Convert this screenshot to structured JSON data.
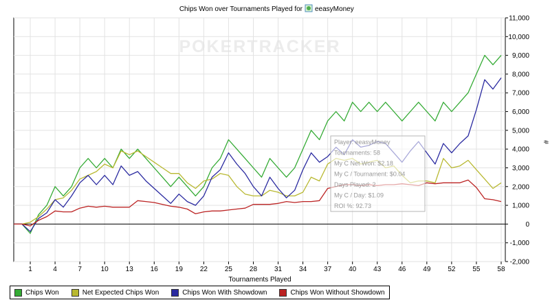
{
  "chart_data": {
    "type": "line",
    "title_prefix": "Chips Won over Tournaments Played for",
    "player_name": "eeasyMoney",
    "xlabel": "Tournaments Played",
    "ylabel": "#",
    "watermark": "POKERTRACKER",
    "x_ticks": [
      1,
      4,
      7,
      10,
      13,
      16,
      19,
      22,
      25,
      28,
      31,
      34,
      37,
      40,
      43,
      46,
      49,
      52,
      55,
      58
    ],
    "xlim": [
      -1,
      58.5
    ],
    "ylim": [
      -2000,
      11000
    ],
    "y_ticks": [
      -2000,
      -1000,
      0,
      1000,
      2000,
      3000,
      4000,
      5000,
      6000,
      7000,
      8000,
      9000,
      10000,
      11000
    ],
    "y_tick_labels": [
      "-2,000",
      "-1,000",
      "0",
      "1,000",
      "2,000",
      "3,000",
      "4,000",
      "5,000",
      "6,000",
      "7,000",
      "8,000",
      "9,000",
      "10,000",
      "11,000"
    ],
    "grid": true,
    "legend_position": "bottom",
    "x": [
      -1,
      0,
      1,
      2,
      3,
      4,
      5,
      6,
      7,
      8,
      9,
      10,
      11,
      12,
      13,
      14,
      15,
      16,
      17,
      18,
      19,
      20,
      21,
      22,
      23,
      24,
      25,
      26,
      27,
      28,
      29,
      30,
      31,
      32,
      33,
      34,
      35,
      36,
      37,
      38,
      39,
      40,
      41,
      42,
      43,
      44,
      45,
      46,
      47,
      48,
      49,
      50,
      51,
      52,
      53,
      54,
      55,
      56,
      57,
      58
    ],
    "series": [
      {
        "name": "Chips Won",
        "color": "#33aa33",
        "values": [
          0,
          0,
          -500,
          500,
          1000,
          2000,
          1500,
          2000,
          3000,
          3500,
          3000,
          3500,
          3000,
          4000,
          3500,
          4000,
          3500,
          3000,
          2500,
          2000,
          2500,
          2000,
          1500,
          2000,
          3000,
          3500,
          4500,
          4000,
          3500,
          3000,
          2500,
          3500,
          3000,
          2500,
          3000,
          4000,
          5000,
          4500,
          5500,
          6000,
          5500,
          6500,
          6000,
          6500,
          6000,
          6500,
          6000,
          5500,
          6000,
          6500,
          6000,
          5500,
          6500,
          6000,
          6500,
          7000,
          8000,
          9000,
          8500,
          9000
        ]
      },
      {
        "name": "Net Expected Chips Won",
        "color": "#b8b830",
        "values": [
          0,
          0,
          100,
          400,
          800,
          1300,
          1400,
          1800,
          2400,
          2600,
          2800,
          3200,
          3000,
          3900,
          3700,
          3900,
          3600,
          3300,
          3000,
          2700,
          2700,
          2200,
          1900,
          2300,
          2400,
          2700,
          2600,
          2000,
          1600,
          1500,
          1500,
          1800,
          1700,
          1500,
          1500,
          1700,
          2500,
          2300,
          3200,
          3500,
          3400,
          3500,
          3200,
          3300,
          3400,
          3000,
          3100,
          2600,
          2200,
          2300,
          2300,
          2200,
          3500,
          3000,
          3100,
          3400,
          2900,
          2400,
          1900,
          2200
        ]
      },
      {
        "name": "Chips Won With Showdown",
        "color": "#2a2aa0",
        "values": [
          0,
          0,
          -400,
          300,
          600,
          1300,
          900,
          1500,
          2200,
          2600,
          2100,
          2600,
          2100,
          3100,
          2600,
          2800,
          2300,
          1900,
          1500,
          1100,
          1600,
          1200,
          1000,
          1500,
          2500,
          2900,
          3800,
          3200,
          2700,
          2000,
          1500,
          2500,
          1900,
          1400,
          1800,
          2900,
          3800,
          3300,
          3600,
          4100,
          3700,
          4500,
          4100,
          4200,
          4400,
          4300,
          3800,
          3300,
          3900,
          4400,
          3800,
          3200,
          4300,
          3800,
          4300,
          4700,
          6100,
          7700,
          7200,
          7800
        ]
      },
      {
        "name": "Chips Won Without Showdown",
        "color": "#bb2222",
        "values": [
          0,
          0,
          -100,
          200,
          400,
          700,
          650,
          650,
          850,
          950,
          900,
          950,
          900,
          900,
          900,
          1250,
          1200,
          1150,
          1050,
          950,
          900,
          800,
          550,
          650,
          700,
          700,
          750,
          800,
          850,
          1050,
          1050,
          1050,
          1100,
          1200,
          1150,
          1200,
          1200,
          1250,
          1900,
          2000,
          2100,
          2100,
          2050,
          2100,
          2050,
          2100,
          2100,
          2150,
          2100,
          2050,
          2200,
          2150,
          2200,
          2200,
          2200,
          2350,
          1950,
          1350,
          1300,
          1200
        ]
      }
    ]
  },
  "tooltip": {
    "lines": [
      "Player: eeasyMoney",
      "Tournaments: 58",
      "My C Net Won: $2.18",
      "My C / Tournament: $0.04",
      "Days Played: 2",
      "My C / Day: $1.09",
      "ROI %: 92.73"
    ]
  }
}
